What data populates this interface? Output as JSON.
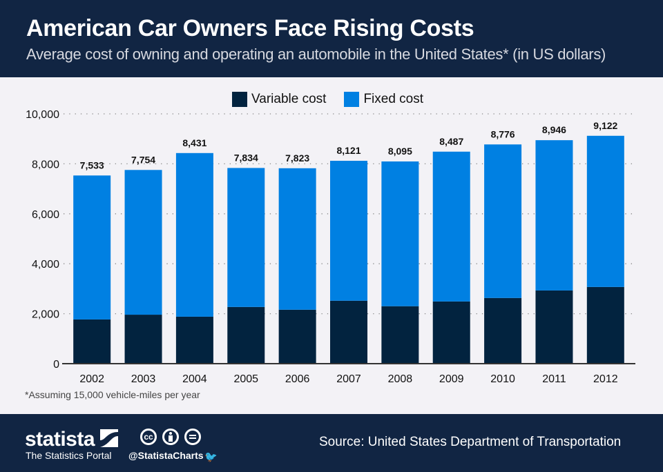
{
  "header": {
    "title": "American Car Owners Face Rising Costs",
    "subtitle": "Average cost of owning and operating an automobile in the United States* (in US dollars)"
  },
  "colors": {
    "header_bg": "#112543",
    "variable": "#02233f",
    "fixed": "#0080e2",
    "background": "#f3f2f6"
  },
  "chart_data": {
    "type": "bar",
    "stacked": true,
    "title": "American Car Owners Face Rising Costs",
    "subtitle": "Average cost of owning and operating an automobile in the United States* (in US dollars)",
    "xlabel": "",
    "ylabel": "",
    "categories": [
      "2002",
      "2003",
      "2004",
      "2005",
      "2006",
      "2007",
      "2008",
      "2009",
      "2010",
      "2011",
      "2012"
    ],
    "series": [
      {
        "name": "Variable cost",
        "color": "#02233f",
        "values": [
          1770,
          1960,
          1880,
          2270,
          2160,
          2520,
          2300,
          2490,
          2630,
          2930,
          3070
        ]
      },
      {
        "name": "Fixed cost",
        "color": "#0080e2",
        "values": [
          5763,
          5794,
          6551,
          5564,
          5663,
          5601,
          5795,
          5997,
          6146,
          6016,
          6052
        ]
      }
    ],
    "totals": [
      7533,
      7754,
      8431,
      7834,
      7823,
      8121,
      8095,
      8487,
      8776,
      8946,
      9122
    ],
    "total_labels": [
      "7,533",
      "7,754",
      "8,431",
      "7,834",
      "7,823",
      "8,121",
      "8,095",
      "8,487",
      "8,776",
      "8,946",
      "9,122"
    ],
    "ylim": [
      0,
      10000
    ],
    "yticks": [
      0,
      2000,
      4000,
      6000,
      8000,
      10000
    ],
    "ytick_labels": [
      "0",
      "2,000",
      "4,000",
      "6,000",
      "8,000",
      "10,000"
    ],
    "grid": true,
    "legend": "top-center",
    "footnote": "*Assuming 15,000 vehicle-miles per year"
  },
  "legend": {
    "variable_label": "Variable cost",
    "fixed_label": "Fixed cost"
  },
  "footnote": "*Assuming 15,000 vehicle-miles per year",
  "footer": {
    "brand": "statista",
    "brand_sub": "The Statistics Portal",
    "license_icons": [
      "cc-icon",
      "attribution-icon",
      "no-derivatives-icon"
    ],
    "cc_text": "cc",
    "handle": "@StatistaCharts",
    "source": "Source: United States Department of Transportation"
  }
}
